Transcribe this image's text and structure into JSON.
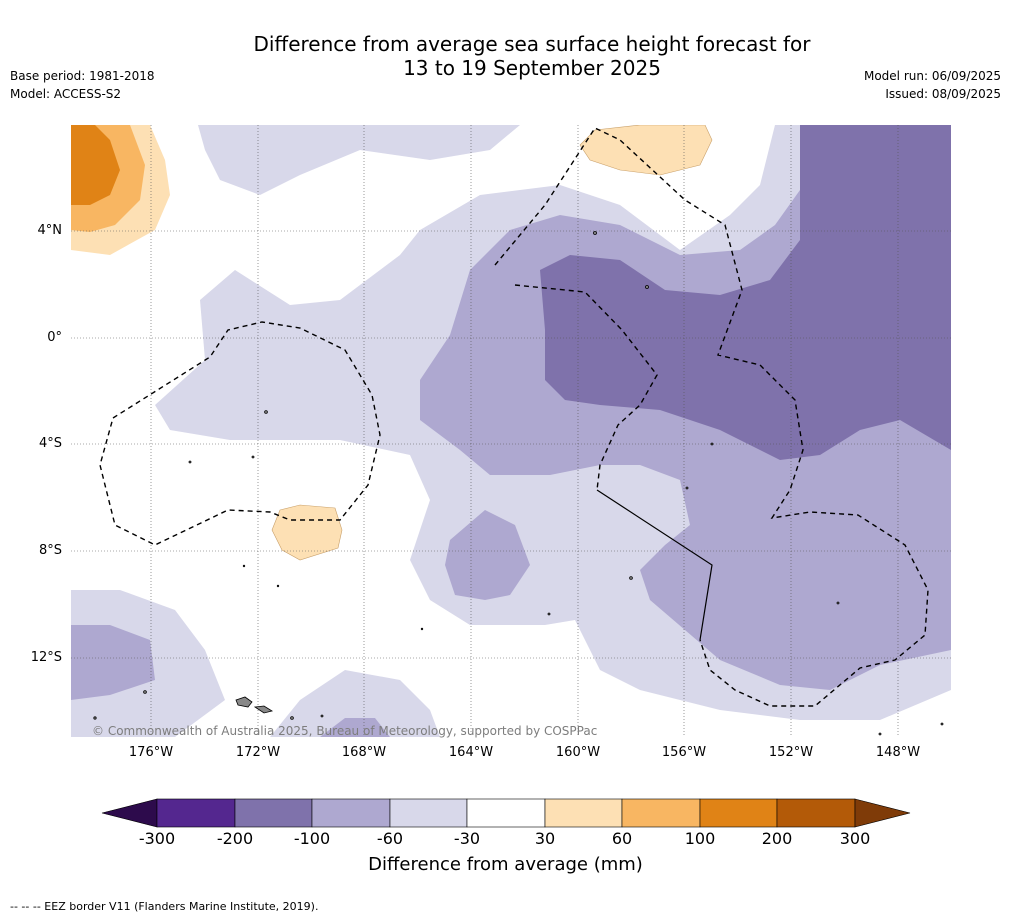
{
  "title_line1": "Difference from average sea surface height forecast for",
  "title_line2": "13 to 19 September 2025",
  "base_period": "Base period: 1981-2018",
  "model": "Model: ACCESS-S2",
  "model_run": "Model run: 06/09/2025",
  "issued": "Issued: 08/09/2025",
  "lat_labels": [
    "4°N",
    "0°",
    "4°S",
    "8°S",
    "12°S"
  ],
  "lon_labels": [
    "176°W",
    "172°W",
    "168°W",
    "164°W",
    "160°W",
    "156°W",
    "152°W",
    "148°W"
  ],
  "copyright": "© Commonwealth of Australia 2025, Bureau of Meteorology, supported by COSPPac",
  "colorbar": {
    "ticks": [
      "-300",
      "-200",
      "-100",
      "-60",
      "-30",
      "30",
      "60",
      "100",
      "200",
      "300"
    ],
    "label": "Difference from average (mm)",
    "colors": [
      "#2d0b4c",
      "#54278f",
      "#7f72ab",
      "#aea8d0",
      "#d8d8ea",
      "#ffffff",
      "#fde0b4",
      "#f8b662",
      "#e08316",
      "#b35a08",
      "#7f3b08"
    ]
  },
  "footnote": "-- -- -- EEZ border V11 (Flanders Marine Institute, 2019)."
}
